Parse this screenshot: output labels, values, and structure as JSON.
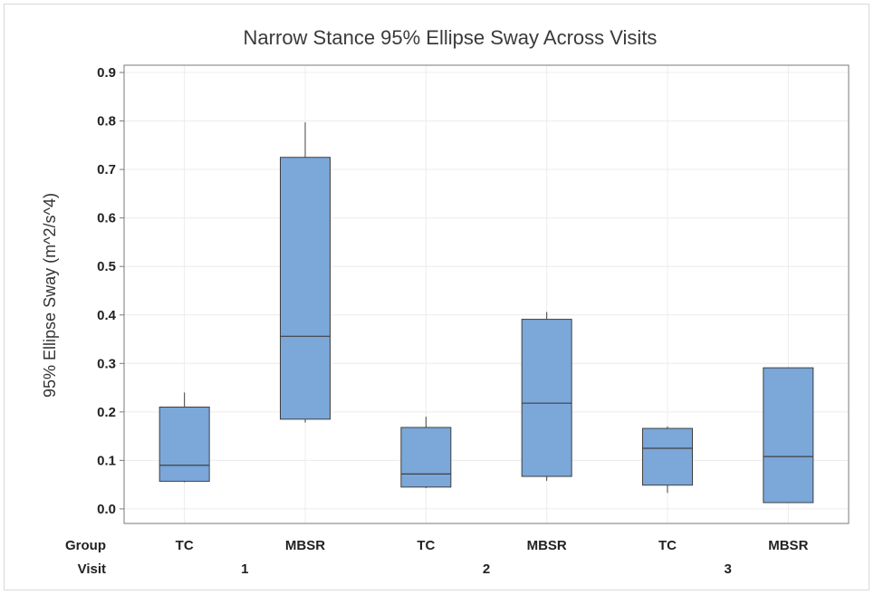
{
  "chart_data": {
    "type": "boxplot",
    "title": "Narrow Stance 95% Ellipse Sway Across Visits",
    "ylabel": "95% Ellipse Sway (m^2/s^4)",
    "ylim": [
      -0.03,
      0.915
    ],
    "yticks": [
      0.0,
      0.1,
      0.2,
      0.3,
      0.4,
      0.5,
      0.6,
      0.7,
      0.8,
      0.9
    ],
    "grid": true,
    "box_color": "#7BA7D9",
    "line_color": "#404040",
    "row_labels": {
      "group": "Group",
      "visit": "Visit"
    },
    "visits": [
      "1",
      "2",
      "3"
    ],
    "groups": [
      "TC",
      "MBSR"
    ],
    "boxes": [
      {
        "visit": "1",
        "group": "TC",
        "min": 0.055,
        "q1": 0.057,
        "median": 0.09,
        "q3": 0.21,
        "max": 0.24
      },
      {
        "visit": "1",
        "group": "MBSR",
        "min": 0.178,
        "q1": 0.185,
        "median": 0.356,
        "q3": 0.725,
        "max": 0.797
      },
      {
        "visit": "2",
        "group": "TC",
        "min": 0.043,
        "q1": 0.045,
        "median": 0.072,
        "q3": 0.168,
        "max": 0.19
      },
      {
        "visit": "2",
        "group": "MBSR",
        "min": 0.058,
        "q1": 0.067,
        "median": 0.218,
        "q3": 0.391,
        "max": 0.406
      },
      {
        "visit": "3",
        "group": "TC",
        "min": 0.033,
        "q1": 0.049,
        "median": 0.125,
        "q3": 0.166,
        "max": 0.17
      },
      {
        "visit": "3",
        "group": "MBSR",
        "min": 0.012,
        "q1": 0.013,
        "median": 0.108,
        "q3": 0.291,
        "max": 0.292
      }
    ]
  }
}
